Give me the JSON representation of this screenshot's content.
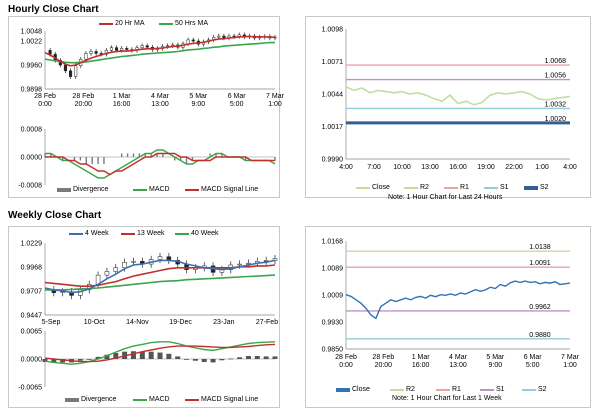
{
  "hourly": {
    "title": "Hourly Close Chart",
    "price_legend": [
      "20 Hr MA",
      "50 Hrs MA"
    ],
    "macd_legend": [
      "Divergence",
      "MACD",
      "MACD Signal Line"
    ],
    "note": "Note: 1 Hour Chart for Last 24 Hours",
    "right_legend": [
      "Close",
      "R2",
      "R1",
      "S1",
      "S2"
    ]
  },
  "weekly": {
    "title": "Weekly Close Chart",
    "price_legend": [
      "4 Week",
      "13 Week",
      "40 Week"
    ],
    "macd_legend": [
      "Divergence",
      "MACD",
      "MACD Signal Line"
    ],
    "note": "Note: 1 Hour Chart for Last 1 Week",
    "right_legend": [
      "Close",
      "R2",
      "R1",
      "S1",
      "S2"
    ]
  },
  "colors": {
    "ma20": "#c0312d",
    "ma50": "#3aa64c",
    "candle": "#222222",
    "macd": "#3aa64c",
    "signal": "#c0312d",
    "divergence": "#7a7a7a",
    "ma4": "#3d6fb5",
    "ma13": "#c0312d",
    "ma40": "#3aa64c",
    "close_light": "#c5dca0",
    "close_dark": "#2f74b5",
    "r2": "#c5dca0",
    "r1": "#e8a3a3",
    "s1": "#c090c8",
    "s2_light": "#92cddc",
    "s2_dark": "#2f5f96"
  },
  "chart_data": [
    {
      "id": "hourly_price",
      "type": "line",
      "xlabels": [
        "28 Feb\n0:00",
        "28 Feb\n20:00",
        "1 Mar\n16:00",
        "4 Mar\n13:00",
        "5 Mar\n9:00",
        "6 Mar\n5:00",
        "7 Mar\n1:00"
      ],
      "yticks": [
        "1.0048",
        "1.0022",
        "0.9960",
        "0.9898"
      ],
      "ylim": [
        0.9898,
        1.0048
      ],
      "series": [
        {
          "name": "Close",
          "values": [
            0.9998,
            0.9988,
            0.9972,
            0.996,
            0.9945,
            0.993,
            0.9958,
            0.9975,
            0.999,
            0.9995,
            0.999,
            0.9988,
            0.9998,
            1.0005,
            0.9998,
            1.0003,
            1.0,
            0.9998,
            1.0005,
            1.001,
            1.0006,
            1.0,
            1.0003,
            1.0008,
            1.001,
            1.0012,
            1.0006,
            1.0015,
            1.0025,
            1.0022,
            1.0014,
            1.002,
            1.0025,
            1.0032,
            1.0035,
            1.003,
            1.0035,
            1.0034,
            1.0038,
            1.0033,
            1.0035,
            1.003,
            1.0032,
            1.0034,
            1.003,
            1.0032
          ]
        },
        {
          "name": "20 Hr MA",
          "values": [
            0.9992,
            0.9986,
            0.9978,
            0.997,
            0.9962,
            0.9958,
            0.996,
            0.9966,
            0.9972,
            0.9978,
            0.9982,
            0.9986,
            0.999,
            0.9993,
            0.9995,
            0.9996,
            0.9996,
            0.9997,
            0.9999,
            1.0001,
            1.0002,
            1.0002,
            1.0003,
            1.0004,
            1.0006,
            1.0008,
            1.0009,
            1.0011,
            1.0014,
            1.0016,
            1.0017,
            1.0019,
            1.0022,
            1.0025,
            1.0027,
            1.0028,
            1.003,
            1.0031,
            1.0033,
            1.0033,
            1.0034,
            1.0033,
            1.0033,
            1.0033,
            1.0032,
            1.0032
          ]
        },
        {
          "name": "50 Hrs MA",
          "values": [
            0.9975,
            0.9973,
            0.9971,
            0.9969,
            0.9967,
            0.9966,
            0.9966,
            0.9967,
            0.9968,
            0.997,
            0.9972,
            0.9974,
            0.9976,
            0.9978,
            0.998,
            0.9982,
            0.9983,
            0.9985,
            0.9986,
            0.9988,
            0.9989,
            0.999,
            0.9991,
            0.9992,
            0.9993,
            0.9994,
            0.9995,
            0.9997,
            0.9999,
            1.0,
            1.0001,
            1.0003,
            1.0004,
            1.0006,
            1.0007,
            1.0009,
            1.001,
            1.0011,
            1.0012,
            1.0013,
            1.0014,
            1.0015,
            1.0016,
            1.0017,
            1.0018,
            1.0018
          ]
        }
      ]
    },
    {
      "id": "hourly_macd",
      "type": "line",
      "yticks": [
        "0.0008",
        "0.0000",
        "-0.0008"
      ],
      "ylim": [
        -0.0008,
        0.0008
      ],
      "series": [
        {
          "name": "MACD",
          "values": [
            0.0001,
            0.0001,
            0.0,
            -0.0001,
            -0.0001,
            -0.0002,
            -0.0003,
            -0.0004,
            -0.0005,
            -0.0006,
            -0.0006,
            -0.0005,
            -0.0004,
            -0.0003,
            -0.0002,
            -0.0001,
            0.0,
            0.0001,
            0.0001,
            0.0002,
            0.0002,
            0.0001,
            0.0,
            -0.0001,
            -0.0002,
            -0.0002,
            -0.0001,
            -0.0001,
            0.0,
            0.0001,
            0.0001,
            0.0,
            0.0,
            0.0,
            -0.0001,
            -0.0001,
            -0.0001,
            -0.0001,
            -0.0001,
            -0.0002
          ]
        },
        {
          "name": "MACD Signal Line",
          "values": [
            0.0,
            0.0,
            0.0,
            0.0,
            -0.0001,
            -0.0001,
            -0.0002,
            -0.0002,
            -0.0003,
            -0.0004,
            -0.0004,
            -0.0005,
            -0.0004,
            -0.0004,
            -0.0003,
            -0.0002,
            -0.0001,
            0.0,
            0.0,
            0.0001,
            0.0001,
            0.0001,
            0.0001,
            0.0,
            0.0,
            -0.0001,
            -0.0001,
            -0.0001,
            -0.0001,
            0.0,
            0.0,
            0.0,
            0.0,
            0.0,
            0.0,
            -0.0001,
            -0.0001,
            -0.0001,
            -0.0001,
            -0.0001
          ]
        },
        {
          "name": "Divergence",
          "values": [
            0.0001,
            0.0001,
            0.0,
            -0.0001,
            0.0,
            -0.0001,
            -0.0001,
            -0.0002,
            -0.0002,
            -0.0002,
            -0.0002,
            0.0,
            0.0,
            0.0001,
            0.0001,
            0.0001,
            0.0001,
            0.0001,
            0.0001,
            0.0001,
            0.0001,
            0.0,
            -0.0001,
            -0.0001,
            -0.0002,
            -0.0001,
            0.0,
            0.0,
            0.0001,
            0.0001,
            0.0001,
            0.0,
            0.0,
            0.0,
            -0.0001,
            0.0,
            0.0,
            0.0,
            0.0,
            -0.0001
          ]
        }
      ]
    },
    {
      "id": "hourly_levels",
      "type": "line",
      "xlabels": [
        "4:00",
        "7:00",
        "10:00",
        "13:00",
        "16:00",
        "19:00",
        "22:00",
        "1:00",
        "4:00"
      ],
      "yticks": [
        "1.0098",
        "1.0071",
        "1.0044",
        "1.0017",
        "0.9990"
      ],
      "ylim": [
        0.999,
        1.0098
      ],
      "levels": [
        {
          "name": "R2",
          "value": 1.0068,
          "label": "1.0068"
        },
        {
          "name": "R1",
          "value": 1.0056,
          "label": "1.0056"
        },
        {
          "name": "S1",
          "value": 1.0032,
          "label": "1.0032"
        },
        {
          "name": "S2",
          "value": 1.002,
          "label": "1.0020"
        }
      ],
      "series": [
        {
          "name": "Close",
          "values": [
            1.005,
            1.0047,
            1.0049,
            1.0045,
            1.0047,
            1.0046,
            1.0045,
            1.0046,
            1.0044,
            1.0045,
            1.0043,
            1.004,
            1.0038,
            1.0043,
            1.0036,
            1.0038,
            1.0035,
            1.0037,
            1.0043,
            1.0045,
            1.0044,
            1.0045,
            1.0046,
            1.0044,
            1.004,
            1.0039,
            1.004,
            1.0041,
            1.0042
          ]
        }
      ]
    },
    {
      "id": "weekly_price",
      "type": "line",
      "xlabels": [
        "5-Sep",
        "10-Oct",
        "14-Nov",
        "19-Dec",
        "23-Jan",
        "27-Feb"
      ],
      "yticks": [
        "1.0229",
        "0.9968",
        "0.9707",
        "0.9447"
      ],
      "ylim": [
        0.9447,
        1.0229
      ],
      "series": [
        {
          "name": "Close",
          "values": [
            0.972,
            0.969,
            0.97,
            0.966,
            0.972,
            0.978,
            0.988,
            0.992,
            0.996,
            1.002,
            1.003,
            1.0,
            1.005,
            1.008,
            1.004,
            1.0,
            0.994,
            0.996,
            0.998,
            0.991,
            0.994,
            0.999,
            1.0,
            1.001,
            1.003,
            1.004,
            1.006
          ]
        },
        {
          "name": "4 Week",
          "values": [
            0.974,
            0.972,
            0.971,
            0.969,
            0.97,
            0.973,
            0.978,
            0.984,
            0.989,
            0.995,
            0.999,
            1.0,
            1.002,
            1.004,
            1.004,
            1.003,
            1.0,
            0.998,
            0.996,
            0.995,
            0.994,
            0.995,
            0.997,
            0.999,
            1.001,
            1.002,
            1.004
          ]
        },
        {
          "name": "13 Week",
          "values": [
            0.98,
            0.979,
            0.978,
            0.977,
            0.976,
            0.976,
            0.977,
            0.979,
            0.981,
            0.984,
            0.987,
            0.989,
            0.991,
            0.993,
            0.995,
            0.996,
            0.996,
            0.996,
            0.996,
            0.996,
            0.996,
            0.996,
            0.997,
            0.997,
            0.998,
            0.998,
            0.999
          ]
        },
        {
          "name": "40 Week",
          "values": [
            0.972,
            0.972,
            0.972,
            0.9725,
            0.973,
            0.9735,
            0.974,
            0.975,
            0.976,
            0.977,
            0.978,
            0.979,
            0.98,
            0.981,
            0.9815,
            0.982,
            0.983,
            0.9835,
            0.984,
            0.9845,
            0.985,
            0.9855,
            0.986,
            0.9865,
            0.987,
            0.9875,
            0.988
          ]
        }
      ]
    },
    {
      "id": "weekly_macd",
      "type": "line",
      "yticks": [
        "0.0065",
        "0.0000",
        "-0.0065"
      ],
      "ylim": [
        -0.0065,
        0.0065
      ],
      "series": [
        {
          "name": "MACD",
          "values": [
            -0.0005,
            -0.0008,
            -0.001,
            -0.0012,
            -0.001,
            -0.0006,
            0.0,
            0.0008,
            0.0016,
            0.0024,
            0.003,
            0.0034,
            0.0038,
            0.004,
            0.004,
            0.0036,
            0.003,
            0.0026,
            0.0022,
            0.002,
            0.0024,
            0.0028,
            0.0032,
            0.0036,
            0.0038,
            0.0039,
            0.004
          ]
        },
        {
          "name": "MACD Signal Line",
          "values": [
            0.0002,
            0.0,
            -0.0002,
            -0.0004,
            -0.0006,
            -0.0006,
            -0.0005,
            -0.0002,
            0.0002,
            0.0007,
            0.0012,
            0.0017,
            0.0021,
            0.0025,
            0.0028,
            0.003,
            0.003,
            0.003,
            0.0029,
            0.0028,
            0.0027,
            0.0027,
            0.0028,
            0.0029,
            0.0031,
            0.0033,
            0.0034
          ]
        },
        {
          "name": "Divergence",
          "values": [
            -0.0007,
            -0.0008,
            -0.0008,
            -0.0008,
            -0.0004,
            0.0,
            0.0005,
            0.001,
            0.0014,
            0.0017,
            0.0018,
            0.0017,
            0.0017,
            0.0015,
            0.0012,
            0.0006,
            0.0,
            -0.0004,
            -0.0007,
            -0.0008,
            -0.0003,
            0.0001,
            0.0004,
            0.0007,
            0.0007,
            0.0006,
            0.0006
          ]
        }
      ]
    },
    {
      "id": "weekly_levels",
      "type": "line",
      "xlabels": [
        "28 Feb\n0:00",
        "28 Feb\n20:00",
        "1 Mar\n16:00",
        "4 Mar\n13:00",
        "5 Mar\n9:00",
        "6 Mar\n5:00",
        "7 Mar\n1:00"
      ],
      "yticks": [
        "1.0168",
        "1.0089",
        "1.0009",
        "0.9930",
        "0.9850"
      ],
      "ylim": [
        0.985,
        1.0168
      ],
      "levels": [
        {
          "name": "R2",
          "value": 1.0138,
          "label": "1.0138"
        },
        {
          "name": "R1",
          "value": 1.0091,
          "label": "1.0091"
        },
        {
          "name": "S1",
          "value": 0.9962,
          "label": "0.9962"
        },
        {
          "name": "S2",
          "value": 0.988,
          "label": "0.9880"
        }
      ],
      "series": [
        {
          "name": "Close",
          "values": [
            1.001,
            1.0005,
            0.9995,
            0.9985,
            0.997,
            0.995,
            0.994,
            0.9975,
            0.9985,
            0.9995,
            0.999,
            0.9995,
            1.0,
            0.9995,
            1.0002,
            1.0005,
            1.0,
            1.0008,
            1.0004,
            1.001,
            1.0008,
            1.0012,
            1.0008,
            1.0015,
            1.0012,
            1.0018,
            1.0025,
            1.002,
            1.0024,
            1.0032,
            1.0028,
            1.004,
            1.0035,
            1.0045,
            1.005,
            1.0046,
            1.005,
            1.0046,
            1.0048,
            1.0042,
            1.0046,
            1.0044,
            1.0048,
            1.004,
            1.0042,
            1.0044
          ]
        }
      ]
    }
  ]
}
